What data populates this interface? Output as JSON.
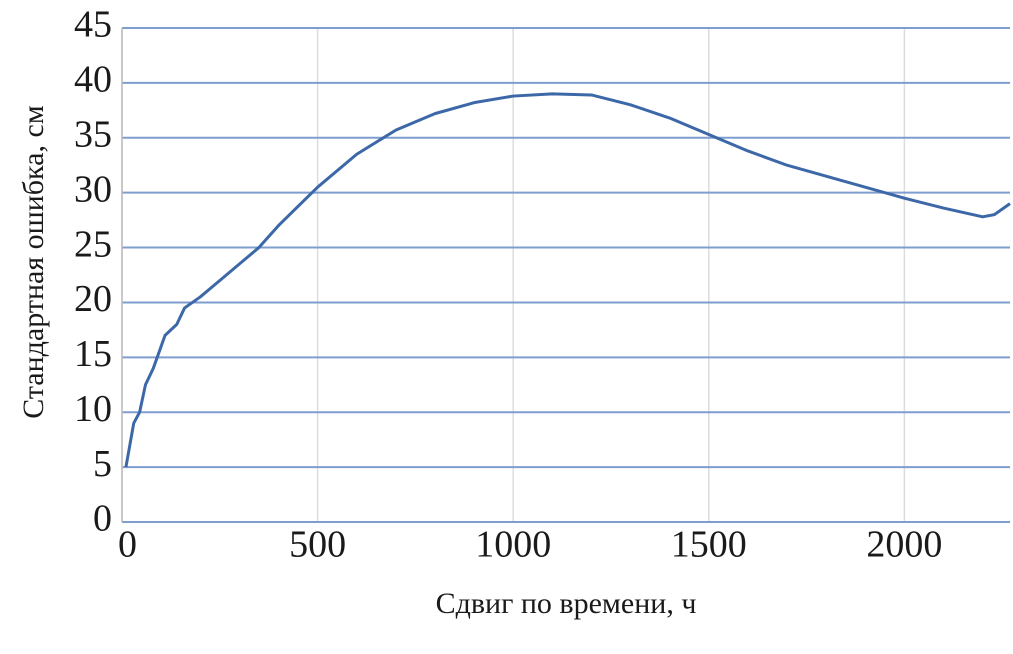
{
  "chart_data": {
    "type": "line",
    "xlabel": "Сдвиг по времени, ч",
    "ylabel": "Стандартная ошибка, см",
    "x": [
      10,
      30,
      45,
      60,
      80,
      110,
      140,
      160,
      200,
      250,
      300,
      350,
      400,
      500,
      600,
      700,
      800,
      900,
      1000,
      1100,
      1200,
      1300,
      1400,
      1500,
      1600,
      1700,
      1800,
      1900,
      2000,
      2100,
      2200,
      2230,
      2270
    ],
    "values": [
      5,
      9,
      10,
      12.5,
      14,
      17,
      18,
      19.5,
      20.5,
      22,
      23.5,
      25,
      27,
      30.5,
      33.5,
      35.7,
      37.2,
      38.2,
      38.8,
      39,
      38.9,
      38,
      36.8,
      35.3,
      33.8,
      32.5,
      31.5,
      30.5,
      29.5,
      28.6,
      27.8,
      28,
      29
    ],
    "color": "#3d68a8",
    "xlim": [
      0,
      2270
    ],
    "xticks": [
      0,
      500,
      1000,
      1500,
      2000
    ],
    "ylim": [
      0,
      45
    ],
    "yticks": [
      0,
      5,
      10,
      15,
      20,
      25,
      30,
      35,
      40,
      45
    ],
    "grid": true
  }
}
